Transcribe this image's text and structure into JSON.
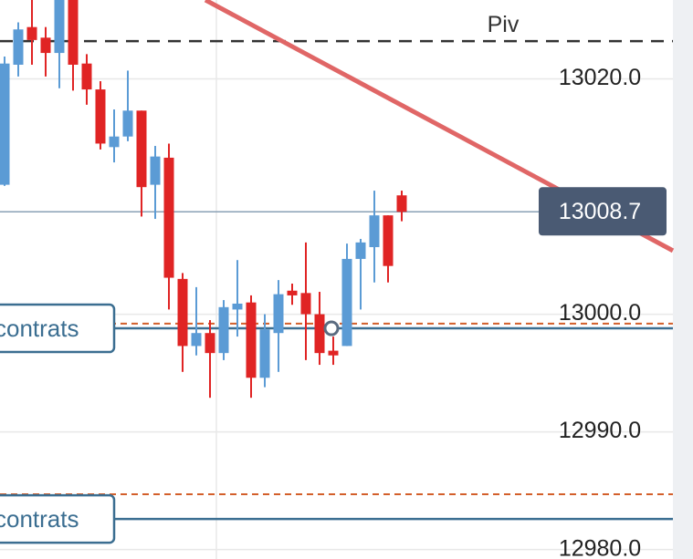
{
  "chart_data": {
    "type": "candlestick",
    "ylim": [
      12979.2,
      13026.7
    ],
    "yticks": [
      {
        "value": 13020,
        "label": "13020.0"
      },
      {
        "value": 13000,
        "label": "13000.0"
      },
      {
        "value": 12990,
        "label": "12990.0"
      },
      {
        "value": 12980,
        "label": "12980.0"
      }
    ],
    "grid": true,
    "up_color": "#5b9bd5",
    "down_color": "#e02424",
    "open": [
      13011.0,
      13021.2,
      13024.4,
      13023.5,
      13022.2,
      13026.7,
      13021.3,
      13019.1,
      13014.2,
      13015.1,
      13017.3,
      13011.0,
      13013.3,
      13003.0,
      12997.3,
      12998.4,
      12996.7,
      13000.4,
      13001.0,
      12994.6,
      12998.4,
      13002.0,
      13001.8,
      13000.0,
      12996.9,
      12997.3,
      13004.7,
      13005.7,
      13008.4,
      13010.1
    ],
    "high": [
      13021.9,
      13024.8,
      13026.7,
      13024.4,
      13026.7,
      13026.7,
      13022.1,
      13019.8,
      13017.4,
      13020.7,
      13017.3,
      13014.3,
      13014.5,
      13003.5,
      13002.3,
      12999.5,
      13001.2,
      13004.6,
      13001.6,
      13000.0,
      13002.9,
      13002.6,
      13006.1,
      13001.9,
      12998.1,
      13006.0,
      13006.4,
      13010.5,
      13008.4,
      13010.5
    ],
    "low": [
      13010.9,
      13020.2,
      13021.2,
      13020.2,
      13019.2,
      13019.0,
      13017.8,
      13014.0,
      13012.9,
      13014.7,
      13008.3,
      13008.1,
      13000.4,
      12995.1,
      12996.5,
      12992.9,
      12996.1,
      12998.1,
      12992.9,
      12993.8,
      12995.1,
      13000.8,
      12996.1,
      12995.7,
      12995.7,
      12997.3,
      13000.4,
      13002.7,
      13002.7,
      13007.9
    ],
    "close": [
      13021.3,
      13024.2,
      13023.3,
      13022.2,
      13026.7,
      13021.2,
      13019.1,
      13014.5,
      13015.1,
      13017.3,
      13010.8,
      13013.4,
      13003.1,
      12997.3,
      12998.4,
      12996.7,
      13000.6,
      13000.9,
      12994.6,
      12998.7,
      13001.7,
      13001.6,
      13000.0,
      12996.7,
      12996.5,
      13004.7,
      13006.1,
      13008.4,
      13004.1,
      13008.7
    ],
    "last_price": {
      "value": 13008.7,
      "label": "13008.7"
    },
    "pivot": {
      "label": "Piv",
      "value": 13023.2
    },
    "order_levels": [
      {
        "label": "contrats",
        "value": 12998.8,
        "stop": 12999.2
      },
      {
        "label": "contrats",
        "value": 12982.6,
        "stop": 12984.7
      }
    ],
    "trendline": {
      "values": [
        13026.7,
        13005.4
      ],
      "color": "#e06666"
    }
  }
}
